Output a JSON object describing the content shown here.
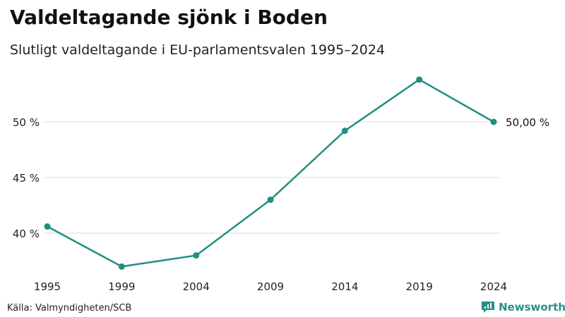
{
  "title": "Valdeltagande sjönk i Boden",
  "subtitle": "Slutligt valdeltagande i EU-parlamentsvalen 1995–2024",
  "source": "Källa: Valmyndigheten/SCB",
  "brand": {
    "name": "Newsworthy",
    "icon": "newsworthy-logo-icon",
    "color": "#2a8f86"
  },
  "chart_data": {
    "type": "line",
    "categories": [
      "1995",
      "1999",
      "2004",
      "2009",
      "2014",
      "2019",
      "2024"
    ],
    "series": [
      {
        "values": [
          40.6,
          37.0,
          38.0,
          43.0,
          49.2,
          53.8,
          50.0
        ],
        "color": "#1f8f82"
      }
    ],
    "y_ticks": [
      40,
      45,
      50
    ],
    "y_tick_labels": [
      "40 %",
      "45 %",
      "50 %"
    ],
    "ylim": [
      36,
      54.5
    ],
    "grid": true,
    "end_label": "50,00 %",
    "xlabel": "",
    "ylabel": ""
  }
}
